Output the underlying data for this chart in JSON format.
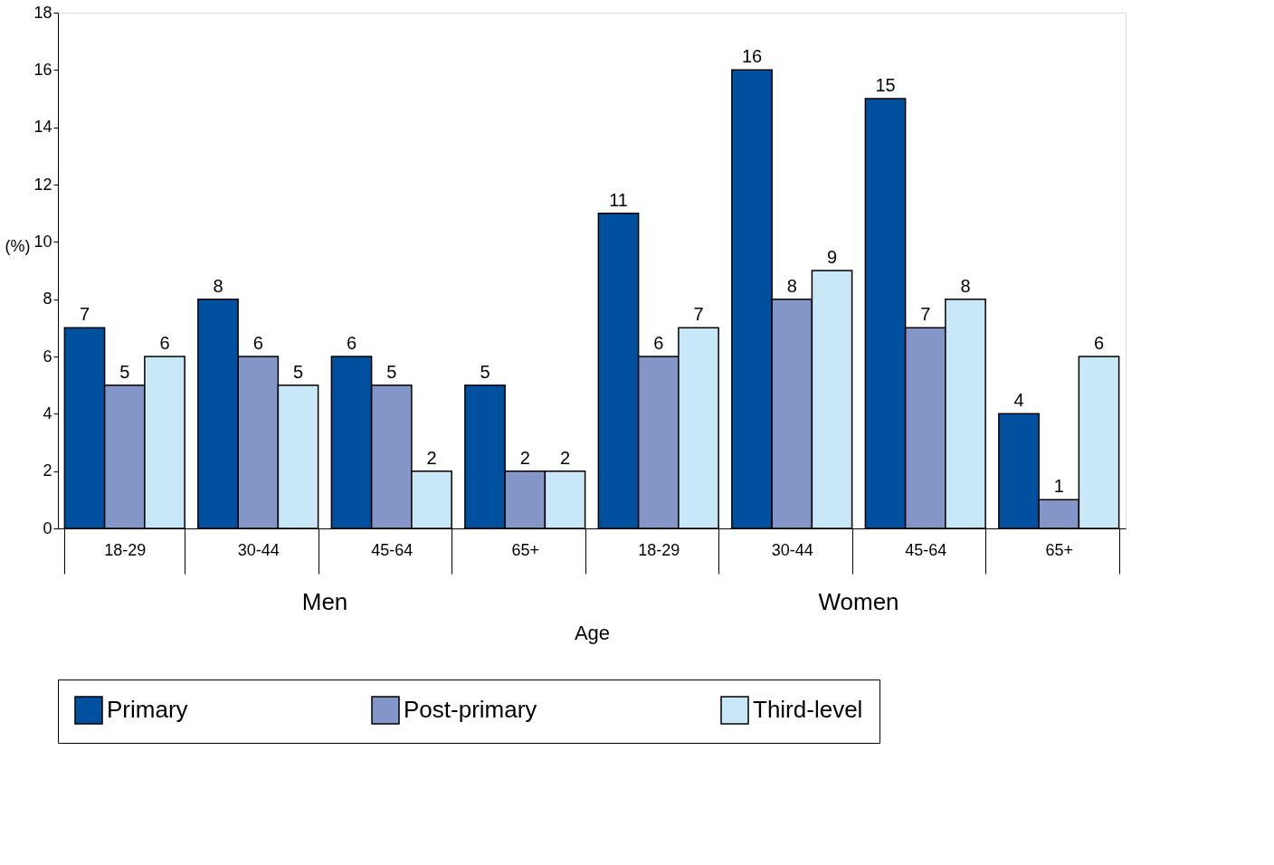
{
  "chart_data": {
    "type": "bar",
    "categories": [
      "18-29",
      "30-44",
      "45-64",
      "65+",
      "18-29",
      "30-44",
      "45-64",
      "65+"
    ],
    "series": [
      {
        "name": "Primary",
        "color": "#0050a0",
        "values": [
          7,
          8,
          6,
          5,
          11,
          16,
          15,
          4
        ]
      },
      {
        "name": "Post-primary",
        "color": "#8496c8",
        "values": [
          5,
          6,
          5,
          2,
          6,
          8,
          7,
          1
        ]
      },
      {
        "name": "Third-level",
        "color": "#c8e8f8",
        "values": [
          6,
          5,
          2,
          2,
          7,
          9,
          8,
          6
        ]
      }
    ],
    "xlabel": "Age",
    "ylabel": "(%)",
    "annotations": [
      "Men",
      "Women"
    ],
    "ylim": [
      0,
      18
    ],
    "yticks": [
      0,
      2,
      4,
      6,
      8,
      10,
      12,
      14,
      16,
      18
    ],
    "data_labels": true,
    "legend": "bottom",
    "grid": false
  }
}
